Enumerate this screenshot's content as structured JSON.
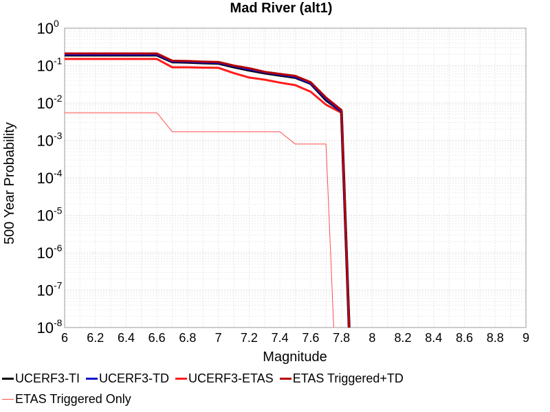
{
  "chart_data": {
    "type": "line",
    "title": "Mad River (alt1)",
    "xlabel": "Magnitude",
    "ylabel": "500 Year Probability",
    "xlim": [
      6,
      9
    ],
    "ylim": [
      1e-08,
      1
    ],
    "yscale": "log",
    "grid": true,
    "x_ticks": [
      "6",
      "6.2",
      "6.4",
      "6.6",
      "6.8",
      "7",
      "7.2",
      "7.4",
      "7.6",
      "7.8",
      "8",
      "8.2",
      "8.4",
      "8.6",
      "8.8",
      "9"
    ],
    "y_tick_exponents": [
      "0",
      "-1",
      "-2",
      "-3",
      "-4",
      "-5",
      "-6",
      "-7",
      "-8"
    ],
    "y_tick_base": "10",
    "legend_position": "bottom",
    "series": [
      {
        "name": "UCERF3-TI",
        "color": "#000000",
        "x": [
          6.0,
          6.6,
          6.7,
          6.8,
          6.9,
          7.0,
          7.1,
          7.2,
          7.3,
          7.4,
          7.5,
          7.6,
          7.7,
          7.8,
          7.85
        ],
        "y": [
          0.19,
          0.19,
          0.125,
          0.122,
          0.118,
          0.115,
          0.092,
          0.075,
          0.063,
          0.055,
          0.048,
          0.033,
          0.012,
          0.006,
          1e-08
        ]
      },
      {
        "name": "UCERF3-TD",
        "color": "#1111cc",
        "x": [
          6.0,
          6.6,
          6.7,
          6.8,
          6.9,
          7.0,
          7.1,
          7.2,
          7.3,
          7.4,
          7.5,
          7.6,
          7.7,
          7.8,
          7.85
        ],
        "y": [
          0.2,
          0.2,
          0.13,
          0.127,
          0.123,
          0.12,
          0.097,
          0.08,
          0.066,
          0.058,
          0.05,
          0.034,
          0.013,
          0.006,
          1e-08
        ]
      },
      {
        "name": "UCERF3-ETAS",
        "color": "#ff1a1a",
        "x": [
          6.0,
          6.6,
          6.7,
          6.8,
          6.9,
          7.0,
          7.1,
          7.2,
          7.3,
          7.4,
          7.5,
          7.6,
          7.7,
          7.8,
          7.85
        ],
        "y": [
          0.15,
          0.15,
          0.09,
          0.09,
          0.088,
          0.087,
          0.063,
          0.048,
          0.042,
          0.035,
          0.03,
          0.02,
          0.009,
          0.0055,
          1e-08
        ]
      },
      {
        "name": "ETAS Triggered+TD",
        "color": "#b30000",
        "x": [
          6.0,
          6.6,
          6.7,
          6.8,
          6.9,
          7.0,
          7.1,
          7.2,
          7.3,
          7.4,
          7.5,
          7.6,
          7.7,
          7.8,
          7.85
        ],
        "y": [
          0.21,
          0.21,
          0.135,
          0.132,
          0.128,
          0.125,
          0.1,
          0.085,
          0.068,
          0.06,
          0.053,
          0.036,
          0.014,
          0.0065,
          1e-08
        ]
      },
      {
        "name": "ETAS Triggered Only",
        "color": "#ff4d4d",
        "x": [
          6.0,
          6.6,
          6.7,
          6.8,
          6.9,
          7.0,
          7.1,
          7.2,
          7.3,
          7.4,
          7.5,
          7.6,
          7.7,
          7.75
        ],
        "y": [
          0.0055,
          0.0055,
          0.0017,
          0.0017,
          0.0017,
          0.0017,
          0.0017,
          0.0017,
          0.0017,
          0.0017,
          0.0008,
          0.0008,
          0.0008,
          1e-08
        ]
      }
    ]
  }
}
